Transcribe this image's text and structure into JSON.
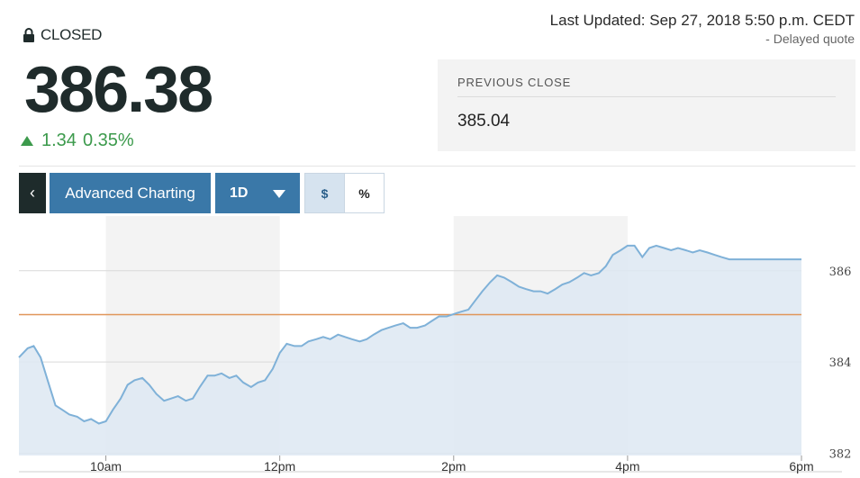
{
  "header": {
    "status": "CLOSED",
    "last_updated": "Last Updated: Sep 27, 2018 5:50 p.m. CEDT",
    "delayed": "-  Delayed quote"
  },
  "quote": {
    "price": "386.38",
    "change": "1.34",
    "change_pct": "0.35%",
    "direction_icon": "triangle-up-icon",
    "change_color": "#3c9a4c"
  },
  "previous_close": {
    "label": "PREVIOUS CLOSE",
    "value": "385.04"
  },
  "toolbar": {
    "back_icon": "chevron-left-icon",
    "advanced_label": "Advanced Charting",
    "range_label": "1D",
    "dollar_label": "$",
    "percent_label": "%",
    "accent": "#3a78a8"
  },
  "chart_data": {
    "type": "area",
    "x_tick_labels": [
      "10am",
      "12pm",
      "2pm",
      "4pm",
      "6pm"
    ],
    "y_tick_labels": [
      "382",
      "384",
      "386"
    ],
    "ylim": [
      381.95,
      387.2
    ],
    "reference_line": {
      "value": 385.04,
      "color": "#e0965a"
    },
    "series": [
      {
        "color": "#7fb1d8",
        "x_hours": [
          9.0,
          9.1,
          9.17,
          9.25,
          9.33,
          9.42,
          9.5,
          9.58,
          9.67,
          9.75,
          9.83,
          9.92,
          10.0,
          10.08,
          10.17,
          10.25,
          10.33,
          10.42,
          10.5,
          10.58,
          10.67,
          10.75,
          10.83,
          10.92,
          11.0,
          11.08,
          11.17,
          11.25,
          11.33,
          11.42,
          11.5,
          11.58,
          11.67,
          11.75,
          11.83,
          11.92,
          12.0,
          12.08,
          12.17,
          12.25,
          12.33,
          12.42,
          12.5,
          12.58,
          12.67,
          12.75,
          12.83,
          12.92,
          13.0,
          13.08,
          13.17,
          13.25,
          13.33,
          13.42,
          13.5,
          13.58,
          13.67,
          13.75,
          13.83,
          13.92,
          14.0,
          14.08,
          14.17,
          14.25,
          14.33,
          14.42,
          14.5,
          14.58,
          14.67,
          14.75,
          14.83,
          14.92,
          15.0,
          15.08,
          15.17,
          15.25,
          15.33,
          15.42,
          15.5,
          15.58,
          15.67,
          15.75,
          15.83,
          15.92,
          16.0,
          16.08,
          16.17,
          16.25,
          16.33,
          16.42,
          16.5,
          16.58,
          16.67,
          16.75,
          16.83,
          16.92,
          17.0,
          17.08,
          17.17,
          17.25,
          17.33,
          17.42,
          17.5,
          17.58,
          17.67,
          17.75,
          18.0
        ],
        "y": [
          384.1,
          384.3,
          384.35,
          384.1,
          383.6,
          383.05,
          382.95,
          382.85,
          382.8,
          382.7,
          382.75,
          382.65,
          382.7,
          382.95,
          383.2,
          383.5,
          383.6,
          383.65,
          383.5,
          383.3,
          383.15,
          383.2,
          383.25,
          383.15,
          383.2,
          383.45,
          383.7,
          383.7,
          383.75,
          383.65,
          383.7,
          383.55,
          383.45,
          383.55,
          383.6,
          383.85,
          384.2,
          384.4,
          384.35,
          384.35,
          384.45,
          384.5,
          384.55,
          384.5,
          384.6,
          384.55,
          384.5,
          384.45,
          384.5,
          384.6,
          384.7,
          384.75,
          384.8,
          384.85,
          384.75,
          384.75,
          384.8,
          384.9,
          385.0,
          385.0,
          385.05,
          385.1,
          385.15,
          385.35,
          385.55,
          385.75,
          385.9,
          385.85,
          385.75,
          385.65,
          385.6,
          385.55,
          385.55,
          385.5,
          385.6,
          385.7,
          385.75,
          385.85,
          385.95,
          385.9,
          385.95,
          386.1,
          386.35,
          386.45,
          386.55,
          386.55,
          386.3,
          386.5,
          386.55,
          386.5,
          386.45,
          386.5,
          386.45,
          386.4,
          386.45,
          386.4,
          386.35,
          386.3,
          386.25,
          386.25,
          386.25,
          386.25,
          386.25,
          386.25,
          386.25,
          386.25,
          386.25
        ]
      }
    ]
  }
}
